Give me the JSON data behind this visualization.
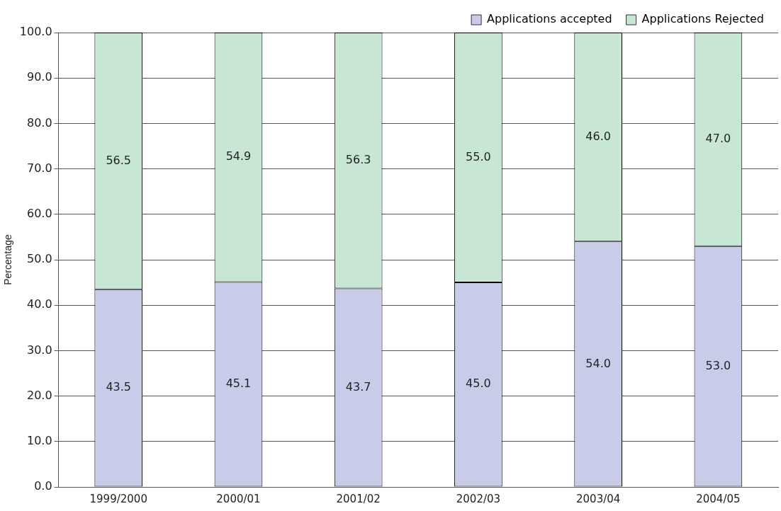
{
  "chart_data": {
    "type": "bar",
    "stacked": true,
    "ylabel": "Percentage",
    "categories": [
      "1999/2000",
      "2000/01",
      "2001/02",
      "2002/03",
      "2003/04",
      "2004/05"
    ],
    "series": [
      {
        "name": "Applications accepted",
        "color": "#c8cce8",
        "values": [
          43.5,
          45.1,
          43.7,
          45.0,
          54.0,
          53.0
        ],
        "value_labels": [
          "43.5",
          "45.1",
          "43.7",
          "45.0",
          "54.0",
          "53.0"
        ]
      },
      {
        "name": "Applications Rejected",
        "color": "#c8e6d4",
        "values": [
          56.5,
          54.9,
          56.3,
          55.0,
          46.0,
          47.0
        ],
        "value_labels": [
          "56.5",
          "54.9",
          "56.3",
          "55.0",
          "46.0",
          "47.0"
        ]
      }
    ],
    "ylim": [
      0,
      100
    ],
    "yticks": [
      {
        "value": 0,
        "label": "0.0"
      },
      {
        "value": 10,
        "label": "10.0"
      },
      {
        "value": 20,
        "label": "20.0"
      },
      {
        "value": 30,
        "label": "30.0"
      },
      {
        "value": 40,
        "label": "40.0"
      },
      {
        "value": 50,
        "label": "50.0"
      },
      {
        "value": 60,
        "label": "60.0"
      },
      {
        "value": 70,
        "label": "70.0"
      },
      {
        "value": 80,
        "label": "80.0"
      },
      {
        "value": 90,
        "label": "90.0"
      },
      {
        "value": 100,
        "label": "100.0"
      }
    ],
    "grid": "y",
    "legend": "top right"
  }
}
